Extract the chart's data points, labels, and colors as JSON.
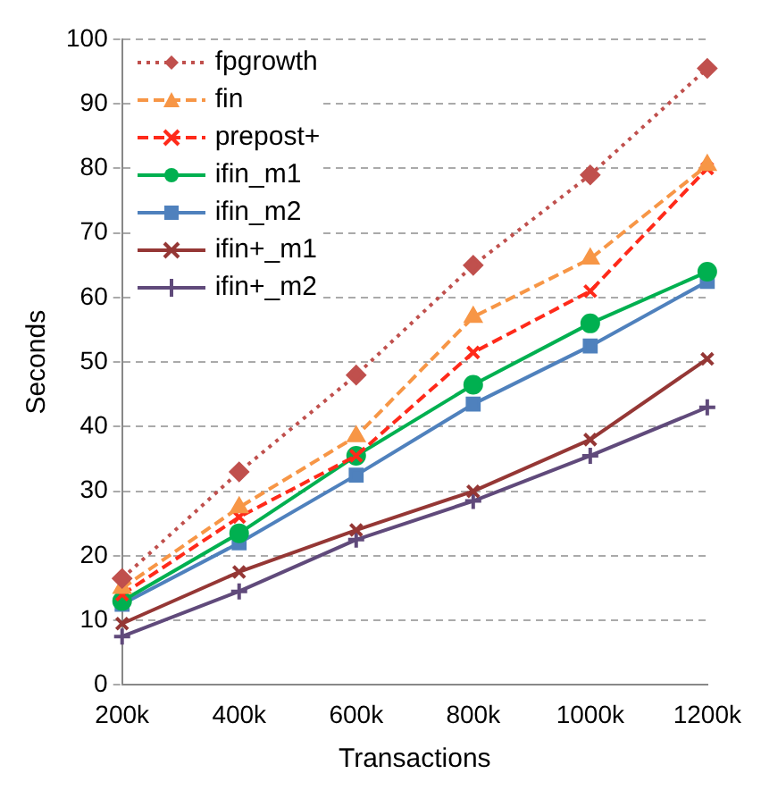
{
  "chart_data": {
    "type": "line",
    "xlabel": "Transactions",
    "ylabel": "Seconds",
    "categories": [
      "200k",
      "400k",
      "600k",
      "800k",
      "1000k",
      "1200k"
    ],
    "ylim": [
      0,
      100
    ],
    "yticks": [
      0,
      10,
      20,
      30,
      40,
      50,
      60,
      70,
      80,
      90,
      100
    ],
    "grid": "y",
    "legend": "top left",
    "series": [
      {
        "name": "fpgrowth",
        "color": "#c0504d",
        "marker": "diamond",
        "line_style": "dotted",
        "values": [
          16.5,
          33,
          48,
          65,
          79,
          95.5
        ]
      },
      {
        "name": "fin",
        "color": "#f79646",
        "marker": "triangle",
        "line_style": "dashed",
        "values": [
          15,
          27.5,
          38.5,
          57,
          66,
          80.5
        ]
      },
      {
        "name": "prepost+",
        "color": "#ff2a1a",
        "marker": "cross",
        "line_style": "dashed",
        "values": [
          14,
          26,
          35.5,
          51.5,
          61,
          80
        ]
      },
      {
        "name": "ifin_m1",
        "color": "#00b050",
        "marker": "circle",
        "line_style": "solid",
        "values": [
          13,
          23.5,
          35.5,
          46.5,
          56,
          64
        ]
      },
      {
        "name": "ifin_m2",
        "color": "#4f81bd",
        "marker": "square",
        "line_style": "solid",
        "values": [
          12.5,
          22,
          32.5,
          43.5,
          52.5,
          62.5
        ]
      },
      {
        "name": "ifin+_m1",
        "color": "#953735",
        "marker": "cross",
        "line_style": "solid",
        "values": [
          9.5,
          17.5,
          24,
          30,
          38,
          50.5
        ]
      },
      {
        "name": "ifin+_m2",
        "color": "#604a7b",
        "marker": "plus",
        "line_style": "solid",
        "values": [
          7.5,
          14.5,
          22.5,
          28.5,
          35.5,
          43
        ]
      }
    ]
  }
}
